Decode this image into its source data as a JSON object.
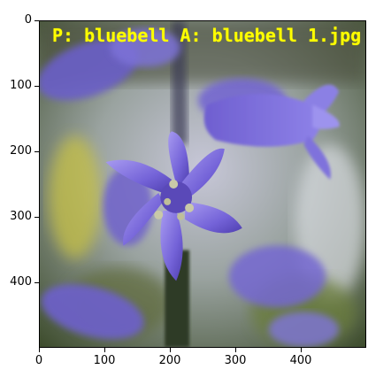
{
  "image": {
    "overlay_label": "P: bluebell A: bluebell 1.jpg",
    "overlay_color": "#ffff00"
  },
  "axes": {
    "y_ticks": [
      "0",
      "100",
      "200",
      "300",
      "400"
    ],
    "x_ticks": [
      "0",
      "100",
      "200",
      "300",
      "400"
    ],
    "x_range": [
      0,
      500
    ],
    "y_range": [
      500,
      0
    ]
  },
  "colors": {
    "flower": "#7a6ee0",
    "background": "#4a5a30"
  }
}
